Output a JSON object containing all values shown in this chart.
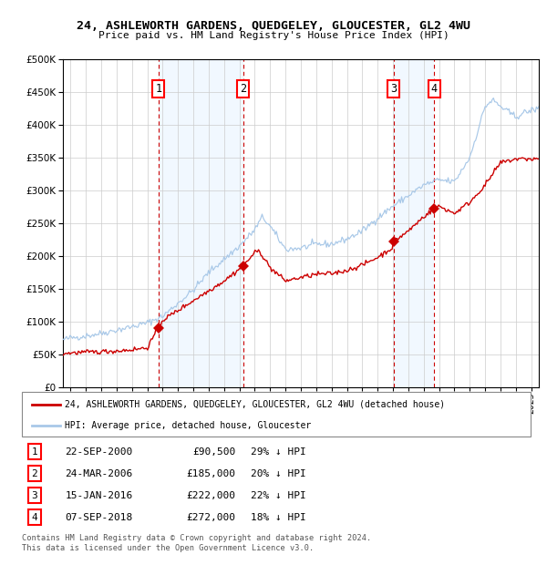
{
  "title": "24, ASHLEWORTH GARDENS, QUEDGELEY, GLOUCESTER, GL2 4WU",
  "subtitle": "Price paid vs. HM Land Registry's House Price Index (HPI)",
  "legend_line1": "24, ASHLEWORTH GARDENS, QUEDGELEY, GLOUCESTER, GL2 4WU (detached house)",
  "legend_line2": "HPI: Average price, detached house, Gloucester",
  "footer1": "Contains HM Land Registry data © Crown copyright and database right 2024.",
  "footer2": "This data is licensed under the Open Government Licence v3.0.",
  "transactions": [
    {
      "id": 1,
      "date": "22-SEP-2000",
      "year": 2000.73,
      "price": 90500,
      "pct": "29% ↓ HPI"
    },
    {
      "id": 2,
      "date": "24-MAR-2006",
      "year": 2006.23,
      "price": 185000,
      "pct": "20% ↓ HPI"
    },
    {
      "id": 3,
      "date": "15-JAN-2016",
      "year": 2016.04,
      "price": 222000,
      "pct": "22% ↓ HPI"
    },
    {
      "id": 4,
      "date": "07-SEP-2018",
      "year": 2018.68,
      "price": 272000,
      "pct": "18% ↓ HPI"
    }
  ],
  "hpi_color": "#a8c8e8",
  "price_color": "#cc0000",
  "marker_color": "#cc0000",
  "dashed_line_color": "#cc0000",
  "shading_color": "#ddeeff",
  "ylim": [
    0,
    500000
  ],
  "yticks": [
    0,
    50000,
    100000,
    150000,
    200000,
    250000,
    300000,
    350000,
    400000,
    450000,
    500000
  ],
  "xlim_start": 1994.5,
  "xlim_end": 2025.5,
  "background_color": "#ffffff",
  "grid_color": "#cccccc"
}
